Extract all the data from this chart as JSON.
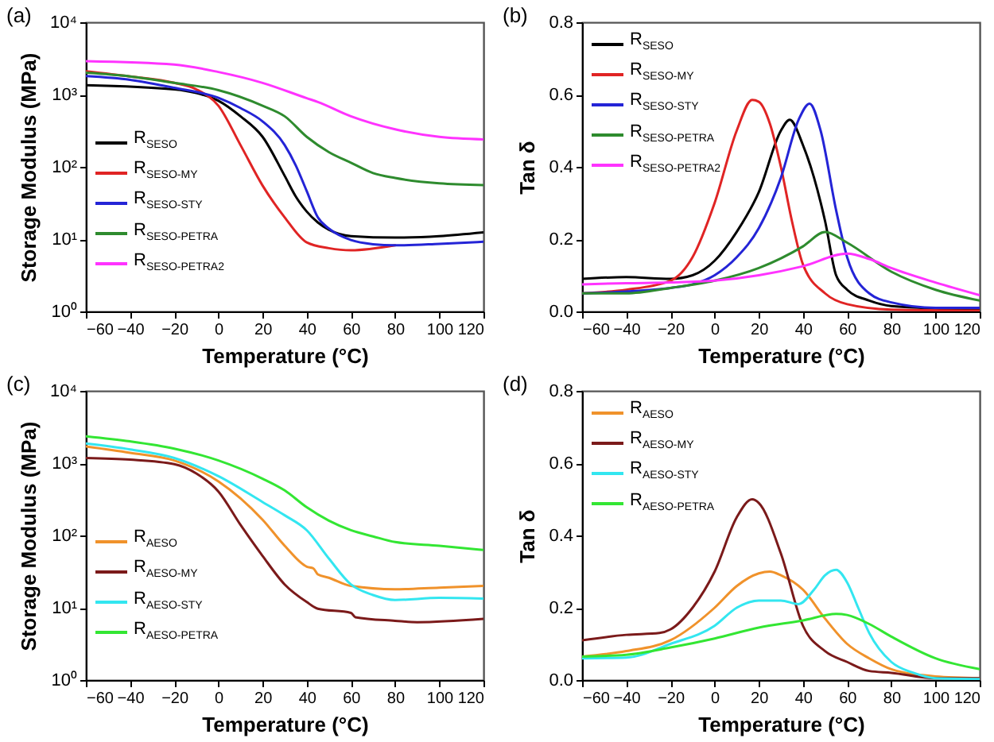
{
  "chart_data": [
    {
      "type": "line",
      "annotations": [
        "(a)"
      ],
      "xlabel": "Temperature (°C)",
      "ylabel": "Storage Modulus (MPa)",
      "log": "y",
      "legend": "bottom left",
      "grid": false,
      "xlim": [
        -60,
        120
      ],
      "xticks": [
        -60,
        -40,
        -20,
        0,
        20,
        40,
        60,
        80,
        100,
        120
      ],
      "ylim": [
        1,
        10000
      ],
      "yticks": [
        {
          "value": 1,
          "label": "10⁰"
        },
        {
          "value": 10,
          "label": "10¹"
        },
        {
          "value": 100,
          "label": "10²"
        },
        {
          "value": 1000,
          "label": "10³"
        },
        {
          "value": 10000,
          "label": "10⁴"
        }
      ],
      "series": [
        {
          "name": "R$_{SESO}$",
          "color": "#000000",
          "x": [
            -60,
            -20,
            -10,
            0,
            10,
            20,
            30,
            35,
            40,
            45,
            50,
            60,
            80,
            100,
            120
          ],
          "values": [
            1350,
            1180,
            1050,
            820,
            500,
            260,
            75,
            39,
            24,
            17,
            13.5,
            11,
            10.5,
            11,
            12.4
          ]
        },
        {
          "name": "R$_{SESO-MY}$",
          "color": "#e02424",
          "x": [
            -60,
            -40,
            -20,
            -10,
            0,
            10,
            20,
            30,
            40,
            50,
            60,
            80
          ],
          "values": [
            2100,
            1780,
            1450,
            1180,
            700,
            200,
            55,
            20,
            9,
            7.5,
            7,
            8.2
          ]
        },
        {
          "name": "R$_{SESO-STY}$",
          "color": "#2424d6",
          "x": [
            -60,
            -40,
            -20,
            0,
            10,
            20,
            30,
            35,
            40,
            45,
            50,
            60,
            70,
            80,
            100,
            120
          ],
          "values": [
            1800,
            1600,
            1240,
            900,
            650,
            425,
            200,
            105,
            46,
            20,
            14,
            9.7,
            8.5,
            8.2,
            8.6,
            9.2
          ]
        },
        {
          "name": "R$_{SESO-PETRA}$",
          "color": "#2e8b2e",
          "x": [
            -60,
            -40,
            -20,
            0,
            20,
            30,
            40,
            50,
            60,
            70,
            80,
            100,
            120
          ],
          "values": [
            2000,
            1780,
            1450,
            1150,
            700,
            500,
            260,
            160,
            114,
            82,
            70,
            59,
            56
          ]
        },
        {
          "name": "R$_{SESO-PETRA2}$",
          "color": "#ff33ff",
          "x": [
            -60,
            -20,
            0,
            20,
            40,
            45,
            60,
            80,
            100,
            120
          ],
          "values": [
            2900,
            2600,
            2050,
            1450,
            890,
            790,
            500,
            330,
            260,
            240
          ]
        }
      ]
    },
    {
      "type": "line",
      "annotations": [
        "(b)"
      ],
      "xlabel": "Temperature (°C)",
      "ylabel": "Tan δ",
      "legend": "top left",
      "grid": false,
      "xlim": [
        -60,
        120
      ],
      "xticks": [
        -60,
        -40,
        -20,
        0,
        20,
        40,
        60,
        80,
        100,
        120
      ],
      "ylim": [
        0,
        0.8
      ],
      "yticks": [
        {
          "value": 0,
          "label": "0.0"
        },
        0.2,
        0.4,
        0.6,
        0.8
      ],
      "series": [
        {
          "name": "R$_{SESO}$",
          "color": "#000000",
          "x": [
            -60,
            -40,
            -20,
            -10,
            0,
            10,
            20,
            30,
            34,
            40,
            45,
            50,
            55,
            60,
            70,
            80,
            120
          ],
          "values": [
            0.09,
            0.095,
            0.09,
            0.1,
            0.14,
            0.22,
            0.33,
            0.5,
            0.53,
            0.46,
            0.37,
            0.25,
            0.1,
            0.06,
            0.03,
            0.015,
            0.005
          ]
        },
        {
          "name": "R$_{SESO-MY}$",
          "color": "#e02424",
          "x": [
            -60,
            -40,
            -20,
            -10,
            0,
            10,
            17,
            20,
            25,
            30,
            35,
            40,
            50,
            60,
            80,
            120
          ],
          "values": [
            0.05,
            0.06,
            0.085,
            0.15,
            0.3,
            0.5,
            0.585,
            0.58,
            0.52,
            0.4,
            0.25,
            0.13,
            0.05,
            0.02,
            0.005,
            0.002
          ]
        },
        {
          "name": "R$_{SESO-STY}$",
          "color": "#2424d6",
          "x": [
            -60,
            -40,
            -20,
            -10,
            0,
            10,
            20,
            30,
            38,
            43,
            48,
            55,
            60,
            70,
            80,
            100,
            120
          ],
          "values": [
            0.05,
            0.055,
            0.065,
            0.075,
            0.1,
            0.15,
            0.23,
            0.37,
            0.53,
            0.575,
            0.5,
            0.28,
            0.15,
            0.05,
            0.025,
            0.01,
            0.01
          ]
        },
        {
          "name": "R$_{SESO-PETRA}$",
          "color": "#2e8b2e",
          "x": [
            -60,
            -40,
            -20,
            0,
            20,
            40,
            50,
            60,
            80,
            100,
            120
          ],
          "values": [
            0.05,
            0.05,
            0.065,
            0.085,
            0.12,
            0.18,
            0.22,
            0.19,
            0.11,
            0.06,
            0.03
          ]
        },
        {
          "name": "R$_{SESO-PETRA2}$",
          "color": "#ff33ff",
          "x": [
            -60,
            -40,
            -20,
            0,
            20,
            40,
            60,
            70,
            80,
            100,
            120
          ],
          "values": [
            0.075,
            0.078,
            0.08,
            0.085,
            0.1,
            0.125,
            0.16,
            0.145,
            0.12,
            0.08,
            0.045
          ]
        }
      ]
    },
    {
      "type": "line",
      "annotations": [
        "(c)"
      ],
      "xlabel": "Temperature (°C)",
      "ylabel": "Storage Modulus (MPa)",
      "log": "y",
      "legend": "bottom left",
      "grid": false,
      "xlim": [
        -60,
        120
      ],
      "xticks": [
        -60,
        -40,
        -20,
        0,
        20,
        40,
        60,
        80,
        100,
        120
      ],
      "ylim": [
        1,
        10000
      ],
      "yticks": [
        {
          "value": 1,
          "label": "10⁰"
        },
        {
          "value": 10,
          "label": "10¹"
        },
        {
          "value": 100,
          "label": "10²"
        },
        {
          "value": 1000,
          "label": "10³"
        },
        {
          "value": 10000,
          "label": "10⁴"
        }
      ],
      "series": [
        {
          "name": "R$_{AESO}$",
          "color": "#f0922b",
          "x": [
            -60,
            -40,
            -20,
            0,
            20,
            30,
            40,
            43,
            45,
            50,
            60,
            80,
            100,
            120
          ],
          "values": [
            1700,
            1390,
            1090,
            560,
            165,
            72,
            37,
            35,
            29,
            26,
            20,
            18,
            19,
            20
          ]
        },
        {
          "name": "R$_{AESO-MY}$",
          "color": "#7b1a1a",
          "x": [
            -60,
            -40,
            -20,
            -10,
            0,
            10,
            20,
            30,
            40,
            45,
            60,
            62,
            80,
            90,
            120
          ],
          "values": [
            1180,
            1120,
            970,
            720,
            405,
            140,
            52,
            21,
            12,
            9.7,
            8.5,
            7.4,
            6.6,
            6.3,
            7
          ]
        },
        {
          "name": "R$_{AESO-STY}$",
          "color": "#33e6f0",
          "x": [
            -60,
            -40,
            -20,
            0,
            20,
            30,
            40,
            50,
            60,
            70,
            80,
            100,
            120
          ],
          "values": [
            1870,
            1550,
            1180,
            660,
            290,
            190,
            118,
            48,
            21,
            15,
            12.8,
            13.7,
            13.4
          ]
        },
        {
          "name": "R$_{AESO-PETRA}$",
          "color": "#33e633",
          "x": [
            -60,
            -40,
            -20,
            0,
            20,
            30,
            40,
            50,
            60,
            70,
            80,
            100,
            120
          ],
          "values": [
            2350,
            2000,
            1590,
            1090,
            610,
            420,
            245,
            160,
            118,
            97,
            81,
            72,
            63
          ]
        }
      ]
    },
    {
      "type": "line",
      "annotations": [
        "(d)"
      ],
      "xlabel": "Temperature (°C)",
      "ylabel": "Tan δ",
      "legend": "top left",
      "grid": false,
      "xlim": [
        -60,
        120
      ],
      "xticks": [
        -60,
        -40,
        -20,
        0,
        20,
        40,
        60,
        80,
        100,
        120
      ],
      "ylim": [
        0,
        0.8
      ],
      "yticks": [
        {
          "value": 0,
          "label": "0.0"
        },
        0.2,
        0.4,
        0.6,
        0.8
      ],
      "series": [
        {
          "name": "R$_{AESO}$",
          "color": "#f0922b",
          "x": [
            -60,
            -40,
            -20,
            0,
            10,
            20,
            25,
            30,
            40,
            50,
            60,
            70,
            80,
            100,
            120
          ],
          "values": [
            0.065,
            0.08,
            0.11,
            0.2,
            0.26,
            0.295,
            0.3,
            0.29,
            0.25,
            0.17,
            0.1,
            0.06,
            0.03,
            0.01,
            0.005
          ]
        },
        {
          "name": "R$_{AESO-MY}$",
          "color": "#7b1a1a",
          "x": [
            -60,
            -40,
            -25,
            -20,
            -10,
            0,
            10,
            17,
            20,
            30,
            40,
            50,
            60,
            70,
            80,
            100,
            120
          ],
          "values": [
            0.11,
            0.125,
            0.13,
            0.14,
            0.2,
            0.3,
            0.45,
            0.5,
            0.49,
            0.35,
            0.15,
            0.08,
            0.05,
            0.025,
            0.02,
            0.005,
            0.005
          ]
        },
        {
          "name": "R$_{AESO-STY}$",
          "color": "#33e6f0",
          "x": [
            -60,
            -40,
            -20,
            0,
            10,
            20,
            30,
            38,
            45,
            50,
            55,
            60,
            65,
            70,
            80,
            90,
            100,
            120
          ],
          "values": [
            0.06,
            0.062,
            0.1,
            0.15,
            0.2,
            0.22,
            0.22,
            0.21,
            0.25,
            0.29,
            0.305,
            0.27,
            0.2,
            0.13,
            0.05,
            0.02,
            0.005,
            0.003
          ]
        },
        {
          "name": "R$_{AESO-PETRA}$",
          "color": "#33e633",
          "x": [
            -60,
            -40,
            -20,
            0,
            20,
            40,
            55,
            60,
            70,
            80,
            100,
            120
          ],
          "values": [
            0.065,
            0.07,
            0.09,
            0.115,
            0.145,
            0.165,
            0.183,
            0.18,
            0.155,
            0.12,
            0.06,
            0.03
          ]
        }
      ]
    }
  ]
}
